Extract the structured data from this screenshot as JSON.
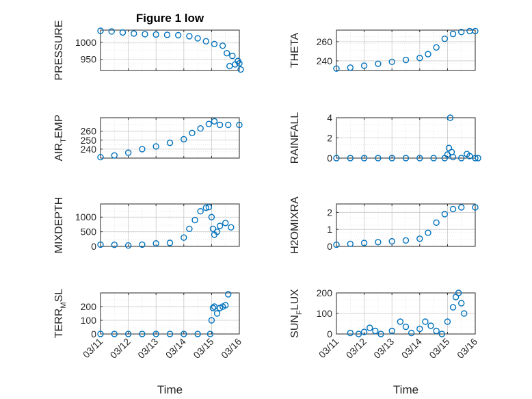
{
  "figure_title": "Figure 1 low",
  "colors": {
    "marker": "#0072BD",
    "axis": "#262626",
    "grid": "#d9d9d9"
  },
  "chart_data": [
    {
      "type": "scatter",
      "id": "pressure",
      "title": "Figure 1 low",
      "ylabel": "PRESSURE",
      "ylabel_parts": [
        [
          "PRESSURE",
          ""
        ]
      ],
      "xlabel": "",
      "ylim": [
        917,
        1036
      ],
      "yticks": [
        950,
        1000
      ],
      "ytick_labels": [
        "950",
        "1000"
      ],
      "xlim": [
        0,
        5
      ],
      "show_xtick_labels": false,
      "grid": true,
      "points": [
        [
          0.0,
          1034
        ],
        [
          0.4,
          1032
        ],
        [
          0.8,
          1029
        ],
        [
          1.2,
          1026
        ],
        [
          1.6,
          1024
        ],
        [
          2.0,
          1023
        ],
        [
          2.4,
          1022
        ],
        [
          2.8,
          1021
        ],
        [
          3.2,
          1018
        ],
        [
          3.5,
          1012
        ],
        [
          3.8,
          1003
        ],
        [
          4.1,
          995
        ],
        [
          4.4,
          990
        ],
        [
          4.55,
          968
        ],
        [
          4.65,
          930
        ],
        [
          4.75,
          960
        ],
        [
          4.85,
          935
        ],
        [
          4.95,
          945
        ],
        [
          5.0,
          938
        ],
        [
          5.05,
          920
        ]
      ]
    },
    {
      "type": "scatter",
      "id": "theta",
      "title": "",
      "ylabel": "THETA",
      "ylabel_parts": [
        [
          "THETA",
          ""
        ]
      ],
      "xlabel": "",
      "ylim": [
        230,
        272
      ],
      "yticks": [
        240,
        260
      ],
      "ytick_labels": [
        "240",
        "260"
      ],
      "xlim": [
        0,
        5
      ],
      "show_xtick_labels": false,
      "grid": true,
      "points": [
        [
          0.0,
          232
        ],
        [
          0.5,
          233
        ],
        [
          1.0,
          235
        ],
        [
          1.5,
          237
        ],
        [
          2.0,
          239
        ],
        [
          2.5,
          241
        ],
        [
          3.0,
          243
        ],
        [
          3.3,
          247
        ],
        [
          3.6,
          254
        ],
        [
          3.9,
          263
        ],
        [
          4.2,
          268
        ],
        [
          4.5,
          270
        ],
        [
          4.8,
          271
        ],
        [
          5.0,
          271
        ]
      ]
    },
    {
      "type": "scatter",
      "id": "air_temp",
      "title": "",
      "ylabel": "AIR_TEMP",
      "ylabel_parts": [
        [
          "AIR",
          ""
        ],
        [
          "T",
          "sub"
        ],
        [
          "EMP",
          ""
        ]
      ],
      "xlabel": "",
      "ylim": [
        230,
        275
      ],
      "yticks": [
        240,
        250,
        260
      ],
      "ytick_labels": [
        "240",
        "250",
        "260"
      ],
      "xlim": [
        0,
        5
      ],
      "show_xtick_labels": false,
      "grid": true,
      "points": [
        [
          0.0,
          231
        ],
        [
          0.5,
          233
        ],
        [
          1.0,
          236
        ],
        [
          1.5,
          240
        ],
        [
          2.0,
          243
        ],
        [
          2.5,
          247
        ],
        [
          3.0,
          251
        ],
        [
          3.3,
          258
        ],
        [
          3.6,
          263
        ],
        [
          3.9,
          268
        ],
        [
          4.1,
          271
        ],
        [
          4.3,
          267
        ],
        [
          4.6,
          267
        ],
        [
          5.0,
          267
        ]
      ]
    },
    {
      "type": "scatter",
      "id": "rainfall",
      "title": "",
      "ylabel": "RAINFALL",
      "ylabel_parts": [
        [
          "RAINFALL",
          ""
        ]
      ],
      "xlabel": "",
      "ylim": [
        0,
        4
      ],
      "yticks": [
        0,
        2,
        4
      ],
      "ytick_labels": [
        "0",
        "2",
        "4"
      ],
      "xlim": [
        0,
        5
      ],
      "show_xtick_labels": false,
      "grid": true,
      "points": [
        [
          0.0,
          0
        ],
        [
          0.5,
          0
        ],
        [
          1.0,
          0
        ],
        [
          1.5,
          0
        ],
        [
          2.0,
          0
        ],
        [
          2.5,
          0
        ],
        [
          3.0,
          0
        ],
        [
          3.5,
          0
        ],
        [
          3.9,
          0
        ],
        [
          4.0,
          0.35
        ],
        [
          4.05,
          1
        ],
        [
          4.1,
          4
        ],
        [
          4.15,
          0.6
        ],
        [
          4.2,
          0.1
        ],
        [
          4.5,
          0
        ],
        [
          4.7,
          0.4
        ],
        [
          4.8,
          0.2
        ],
        [
          5.0,
          0
        ],
        [
          5.1,
          0
        ]
      ]
    },
    {
      "type": "scatter",
      "id": "mixdepth",
      "title": "",
      "ylabel": "MIXDEPTH",
      "ylabel_parts": [
        [
          "MIXDEPTH",
          ""
        ]
      ],
      "xlabel": "",
      "ylim": [
        0,
        1450
      ],
      "yticks": [
        0,
        500,
        1000
      ],
      "ytick_labels": [
        "0",
        "500",
        "1000"
      ],
      "xlim": [
        0,
        5
      ],
      "show_xtick_labels": false,
      "grid": true,
      "points": [
        [
          0.0,
          60
        ],
        [
          0.5,
          55
        ],
        [
          1.0,
          30
        ],
        [
          1.5,
          60
        ],
        [
          2.0,
          100
        ],
        [
          2.5,
          120
        ],
        [
          3.0,
          300
        ],
        [
          3.2,
          600
        ],
        [
          3.4,
          900
        ],
        [
          3.6,
          1200
        ],
        [
          3.8,
          1320
        ],
        [
          3.9,
          1340
        ],
        [
          4.0,
          1000
        ],
        [
          4.05,
          600
        ],
        [
          4.1,
          400
        ],
        [
          4.2,
          500
        ],
        [
          4.3,
          700
        ],
        [
          4.5,
          800
        ],
        [
          4.7,
          650
        ]
      ]
    },
    {
      "type": "scatter",
      "id": "h2omixra",
      "title": "",
      "ylabel": "H2OMIXRA",
      "ylabel_parts": [
        [
          "H2OMIXRA",
          ""
        ]
      ],
      "xlabel": "",
      "ylim": [
        0,
        2.5
      ],
      "yticks": [
        0,
        1,
        2
      ],
      "ytick_labels": [
        "0",
        "1",
        "2"
      ],
      "xlim": [
        0,
        5
      ],
      "show_xtick_labels": false,
      "grid": true,
      "points": [
        [
          0.0,
          0.1
        ],
        [
          0.5,
          0.15
        ],
        [
          1.0,
          0.2
        ],
        [
          1.5,
          0.25
        ],
        [
          2.0,
          0.3
        ],
        [
          2.5,
          0.35
        ],
        [
          3.0,
          0.45
        ],
        [
          3.3,
          0.8
        ],
        [
          3.6,
          1.4
        ],
        [
          3.9,
          1.9
        ],
        [
          4.2,
          2.2
        ],
        [
          4.5,
          2.3
        ],
        [
          5.0,
          2.3
        ]
      ]
    },
    {
      "type": "scatter",
      "id": "terr_msl",
      "title": "",
      "ylabel": "TERR_MSL",
      "ylabel_parts": [
        [
          "TERR",
          ""
        ],
        [
          "M",
          "sub"
        ],
        [
          "SL",
          ""
        ]
      ],
      "xlabel": "Time",
      "ylim": [
        0,
        300
      ],
      "yticks": [
        0,
        100,
        200
      ],
      "ytick_labels": [
        "0",
        "100",
        "200"
      ],
      "xlim": [
        0,
        5
      ],
      "xticks": [
        0,
        1,
        2,
        3,
        4,
        5
      ],
      "xtick_labels": [
        "03/11",
        "03/12",
        "03/13",
        "03/14",
        "03/15",
        "03/16"
      ],
      "show_xtick_labels": true,
      "grid": true,
      "points": [
        [
          0.0,
          0
        ],
        [
          0.5,
          0
        ],
        [
          1.0,
          0
        ],
        [
          1.5,
          0
        ],
        [
          2.0,
          0
        ],
        [
          2.5,
          0
        ],
        [
          3.0,
          0
        ],
        [
          3.5,
          0
        ],
        [
          3.95,
          0
        ],
        [
          4.0,
          100
        ],
        [
          4.05,
          190
        ],
        [
          4.1,
          200
        ],
        [
          4.2,
          150
        ],
        [
          4.3,
          190
        ],
        [
          4.4,
          200
        ],
        [
          4.5,
          210
        ],
        [
          4.6,
          290
        ]
      ]
    },
    {
      "type": "scatter",
      "id": "sun_flux",
      "title": "",
      "ylabel": "SUN_FLUX",
      "ylabel_parts": [
        [
          "SUN",
          ""
        ],
        [
          "F",
          "sub"
        ],
        [
          "LUX",
          ""
        ]
      ],
      "xlabel": "Time",
      "ylim": [
        0,
        200
      ],
      "yticks": [
        0,
        100,
        200
      ],
      "ytick_labels": [
        "0",
        "100",
        "200"
      ],
      "xlim": [
        0,
        5
      ],
      "xticks": [
        0,
        1,
        2,
        3,
        4,
        5
      ],
      "xtick_labels": [
        "03/11",
        "03/12",
        "03/13",
        "03/14",
        "03/15",
        "03/16"
      ],
      "show_xtick_labels": true,
      "grid": true,
      "points": [
        [
          0.5,
          5
        ],
        [
          0.8,
          0
        ],
        [
          1.0,
          10
        ],
        [
          1.2,
          30
        ],
        [
          1.4,
          15
        ],
        [
          1.6,
          0
        ],
        [
          2.0,
          15
        ],
        [
          2.3,
          60
        ],
        [
          2.5,
          35
        ],
        [
          2.7,
          5
        ],
        [
          3.0,
          25
        ],
        [
          3.2,
          60
        ],
        [
          3.4,
          40
        ],
        [
          3.6,
          15
        ],
        [
          3.8,
          0
        ],
        [
          4.0,
          60
        ],
        [
          4.2,
          130
        ],
        [
          4.3,
          180
        ],
        [
          4.4,
          200
        ],
        [
          4.5,
          150
        ],
        [
          4.6,
          100
        ]
      ]
    }
  ]
}
